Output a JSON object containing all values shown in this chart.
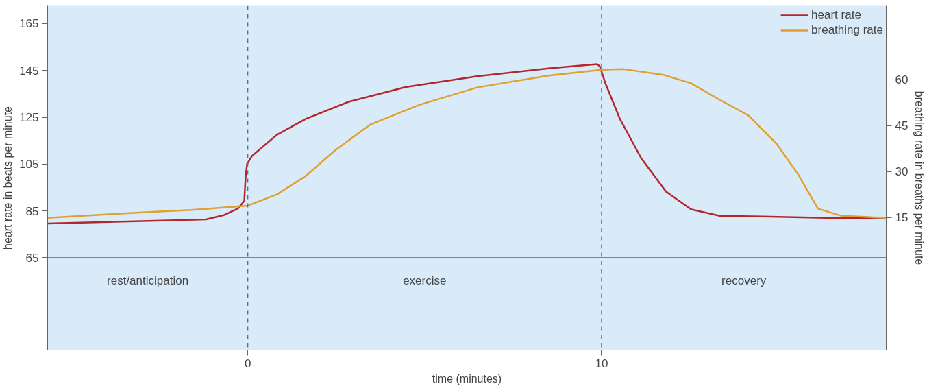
{
  "chart_data": {
    "type": "line",
    "xlabel": "time (minutes)",
    "ylabel": "heart rate in beats per minute",
    "y2label": "breathing rate in breaths per minute",
    "xlim": [
      -5.66,
      18.05
    ],
    "xticks": [
      0,
      10
    ],
    "ylim": [
      25.6,
      172.6
    ],
    "yticks": [
      65,
      85,
      105,
      125,
      145,
      165
    ],
    "y2lim": [
      -28.3,
      84.2
    ],
    "y2ticks": [
      15,
      30,
      45,
      60
    ],
    "grid": false,
    "legend": "top right",
    "marker": "none",
    "line_style": "solid",
    "series": [
      {
        "name": "heart rate",
        "color": "#b5262b",
        "x": [
          -5.66,
          -1.18,
          -0.68,
          -0.28,
          -0.1,
          -0.06,
          -0.02,
          0.12,
          0.83,
          1.64,
          2.85,
          4.46,
          6.48,
          8.5,
          9.87,
          9.95,
          10.11,
          10.52,
          11.12,
          11.82,
          12.53,
          13.34,
          14.55,
          16.57,
          18.03
        ],
        "values": [
          79.6,
          81.4,
          83.2,
          86,
          89.3,
          100,
          105.1,
          108.5,
          117.6,
          124.3,
          131.6,
          137.9,
          142.5,
          145.9,
          147.7,
          146.8,
          139.5,
          124.3,
          107.6,
          93.3,
          85.7,
          82.9,
          82.6,
          82,
          82
        ]
      },
      {
        "name": "breathing rate",
        "color": "#e0a030",
        "axis": "y2",
        "x": [
          -5.66,
          -3.6,
          -1.59,
          0,
          0.83,
          1.64,
          2.45,
          3.46,
          4.87,
          6.48,
          8.5,
          10.0,
          10.63,
          11.73,
          12.53,
          13.34,
          14.15,
          14.95,
          15.56,
          16.12,
          16.77,
          18.03
        ],
        "values": [
          14.9,
          16.3,
          17.5,
          18.9,
          22.6,
          28.6,
          36.8,
          45.4,
          51.9,
          57.5,
          61.4,
          63.3,
          63.5,
          61.7,
          58.9,
          53.5,
          48.4,
          39.1,
          29.1,
          17.9,
          15.6,
          14.9
        ]
      }
    ],
    "ref_lines": [
      {
        "axis": "x",
        "value": 0,
        "color": "#4a6f8f",
        "line_style": "dashed"
      },
      {
        "axis": "x",
        "value": 10,
        "color": "#4a6f8f",
        "line_style": "dashed"
      },
      {
        "axis": "y",
        "value": 65,
        "color": "#3a6a9a",
        "line_style": "solid"
      }
    ],
    "annotations": [
      "rest/anticipation",
      "exercise",
      "recovery"
    ]
  }
}
